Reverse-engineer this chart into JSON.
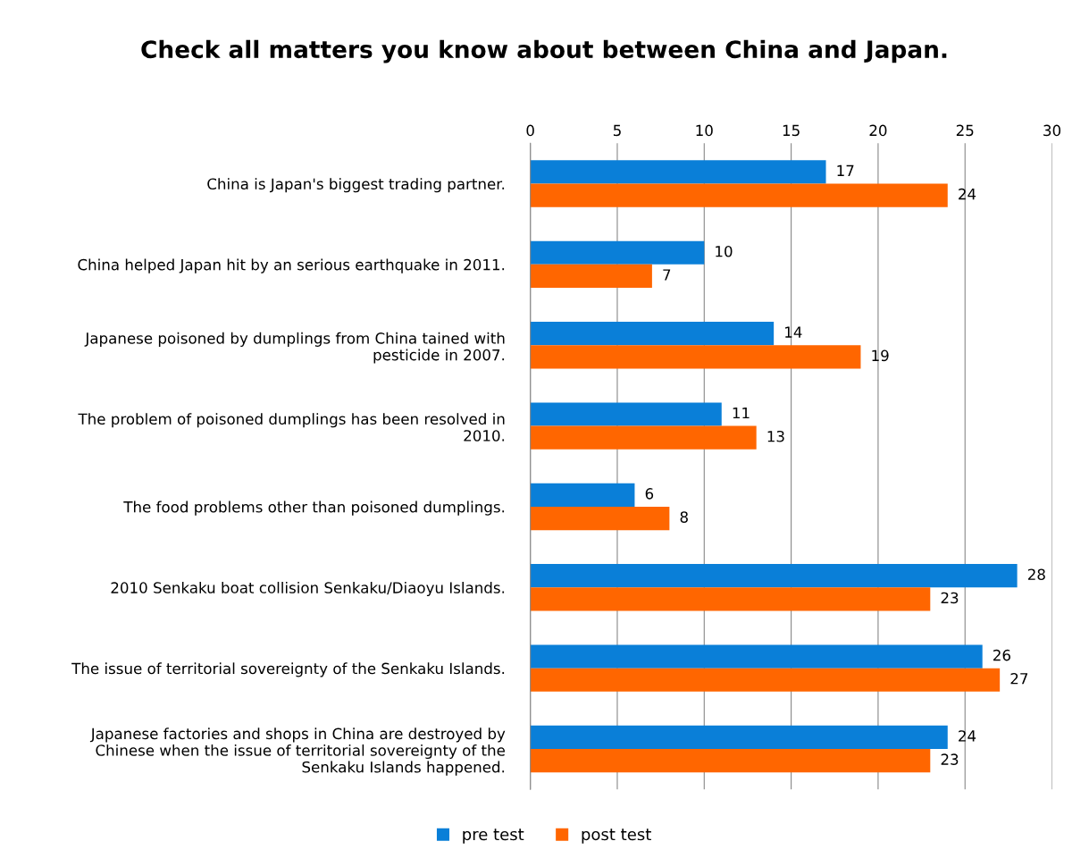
{
  "chart_data": {
    "type": "bar",
    "orientation": "horizontal",
    "title": "Check all matters you know about between China and Japan.",
    "categories": [
      "China is Japan's biggest trading partner.",
      "China helped Japan hit by an serious earthquake in 2011.",
      "Japanese poisoned by dumplings from China tained with\npesticide in 2007.",
      "The problem of poisoned dumplings has been resolved in\n2010.",
      "The food problems other than poisoned dumplings.",
      "2010 Senkaku boat collision Senkaku/Diaoyu Islands.",
      "The issue of territorial sovereignty of the Senkaku Islands.",
      "Japanese factories and shops in China are destroyed by\nChinese when the issue of territorial sovereignty of the\nSenkaku Islands happened."
    ],
    "series": [
      {
        "name": "pre test",
        "color": "#0a7fd8",
        "values": [
          17,
          10,
          14,
          11,
          6,
          28,
          26,
          24
        ]
      },
      {
        "name": "post test",
        "color": "#ff6600",
        "values": [
          24,
          7,
          19,
          13,
          8,
          23,
          27,
          23
        ]
      }
    ],
    "xlim": [
      0,
      30
    ],
    "xticks": [
      0,
      5,
      10,
      15,
      20,
      25,
      30
    ],
    "grid": "x",
    "legend": "bottom",
    "data_labels": true
  }
}
